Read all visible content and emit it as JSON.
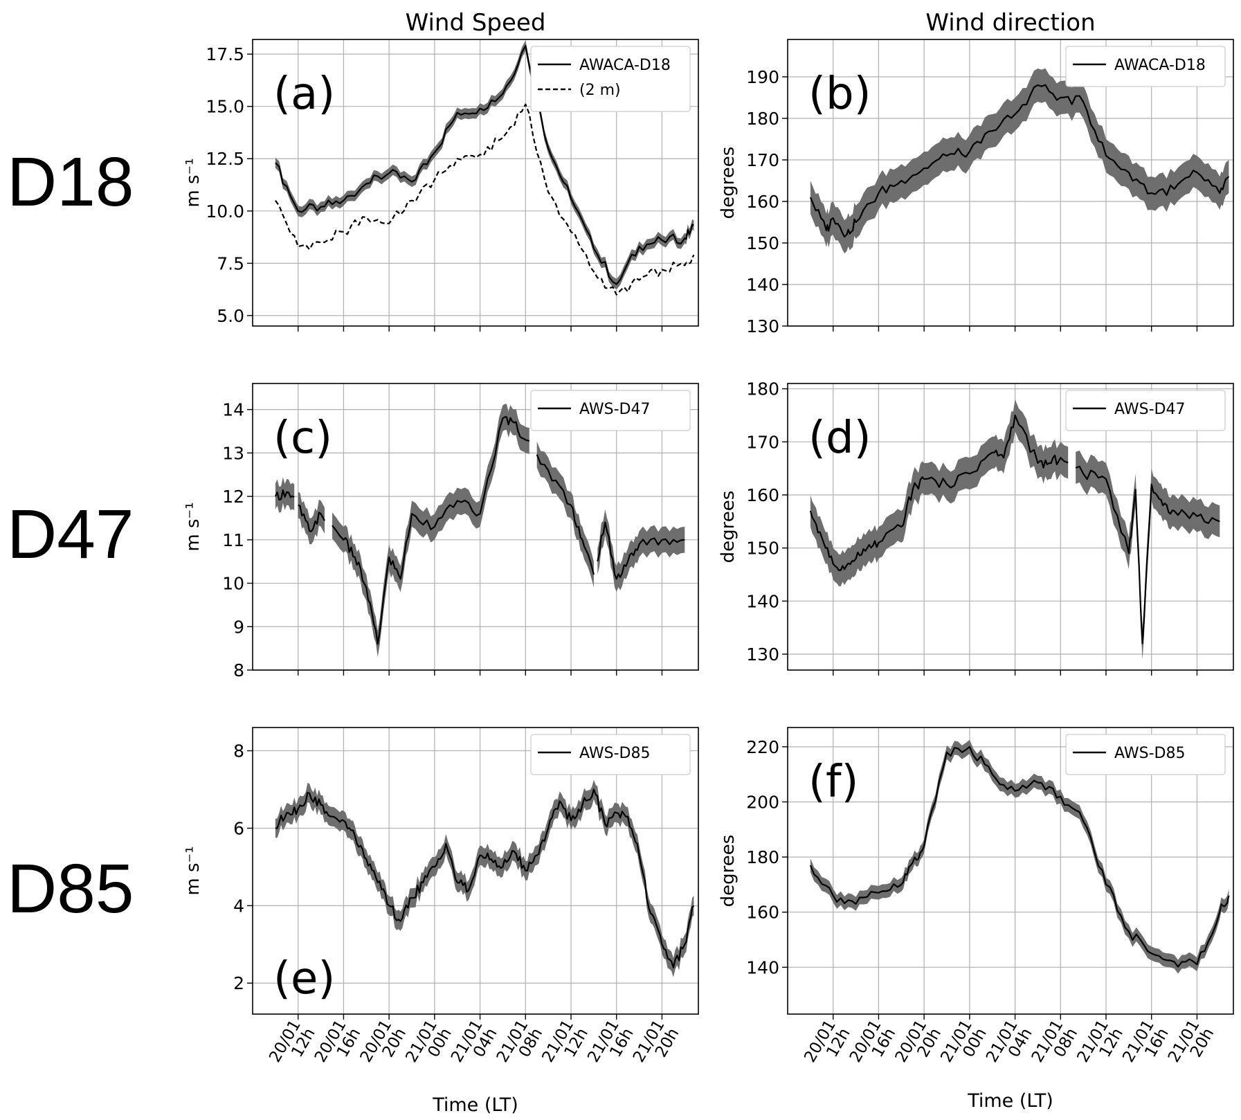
{
  "figure": {
    "column_titles": [
      "Wind Speed",
      "Wind direction"
    ],
    "row_labels": [
      "D18",
      "D47",
      "D85"
    ],
    "xlabel": "Time (LT)",
    "x_ticks": [
      {
        "date": "20/01",
        "hour": "12h"
      },
      {
        "date": "20/01",
        "hour": "16h"
      },
      {
        "date": "20/01",
        "hour": "20h"
      },
      {
        "date": "21/01",
        "hour": "00h"
      },
      {
        "date": "21/01",
        "hour": "04h"
      },
      {
        "date": "21/01",
        "hour": "08h"
      },
      {
        "date": "21/01",
        "hour": "12h"
      },
      {
        "date": "21/01",
        "hour": "16h"
      },
      {
        "date": "21/01",
        "hour": "20h"
      }
    ],
    "colors": {
      "line": "#000000",
      "band": "#6e6e6e",
      "grid": "#b0b0b0"
    }
  },
  "chart_data": [
    {
      "type": "line",
      "panel": "(a)",
      "ylabel": "m s⁻¹",
      "ylim": [
        4.5,
        18.2
      ],
      "yticks": [
        5.0,
        7.5,
        10.0,
        12.5,
        15.0,
        17.5
      ],
      "ytick_decimals": 1,
      "xlim": [
        6,
        25.6
      ],
      "grid": true,
      "legend_position": "upper-right",
      "label_position": "upper-left",
      "x": [
        7,
        8,
        9,
        10,
        11,
        12,
        13,
        14,
        15,
        16,
        17,
        18,
        19,
        20,
        21,
        22,
        23,
        24,
        25,
        25.4
      ],
      "series": [
        {
          "name": "AWACA-D18",
          "style": "solid",
          "band": 0.25,
          "values": [
            12.3,
            10.0,
            10.2,
            10.5,
            11.3,
            11.8,
            11.4,
            12.8,
            14.7,
            14.9,
            15.6,
            17.9,
            13.0,
            10.6,
            8.2,
            6.5,
            8.3,
            8.6,
            8.7,
            9.3
          ]
        },
        {
          "name": "(2 m)",
          "style": "dashed",
          "band": 0,
          "values": [
            10.5,
            8.3,
            8.5,
            9.0,
            9.7,
            9.4,
            10.5,
            11.5,
            12.5,
            12.7,
            13.5,
            15.1,
            10.9,
            9.0,
            7.1,
            6.0,
            6.7,
            7.2,
            7.4,
            7.9
          ]
        }
      ]
    },
    {
      "type": "line",
      "panel": "(b)",
      "ylabel": "degrees",
      "ylim": [
        130,
        199
      ],
      "yticks": [
        130,
        140,
        150,
        160,
        170,
        180,
        190
      ],
      "ytick_decimals": 0,
      "xlim": [
        6,
        25.6
      ],
      "grid": true,
      "legend_position": "upper-right",
      "label_position": "upper-left",
      "x": [
        7,
        7.7,
        8,
        8.6,
        9,
        10,
        11,
        12,
        13,
        14,
        15,
        16,
        17,
        18,
        19,
        20,
        21,
        22,
        23,
        24,
        25,
        25.4
      ],
      "series": [
        {
          "name": "AWACA-D18",
          "style": "solid",
          "band": 4,
          "values": [
            161,
            153,
            156,
            152,
            155,
            162,
            165,
            168,
            171,
            172,
            177,
            181,
            188,
            185,
            184,
            171,
            167,
            162,
            163,
            167,
            162,
            166
          ]
        }
      ]
    },
    {
      "type": "line",
      "panel": "(c)",
      "ylabel": "m s⁻¹",
      "ylim": [
        8,
        14.6
      ],
      "yticks": [
        8,
        9,
        10,
        11,
        12,
        13,
        14
      ],
      "ytick_decimals": 0,
      "xlim": [
        6,
        25.6
      ],
      "grid": true,
      "legend_position": "upper-right",
      "label_position": "upper-left",
      "x": [
        7,
        7.5,
        8,
        8.5,
        9,
        10,
        10.5,
        11,
        11.5,
        12,
        12.5,
        13,
        14,
        15,
        16,
        17,
        17.5,
        18,
        19,
        20,
        20.5,
        21,
        21.5,
        22,
        22.5,
        23,
        24,
        25
      ],
      "series": [
        {
          "name": "AWS-D47",
          "style": "solid",
          "band": 0.3,
          "values": [
            12.0,
            12.1,
            11.8,
            11.2,
            11.6,
            11.0,
            10.6,
            9.9,
            8.6,
            10.6,
            10.1,
            11.6,
            11.3,
            11.9,
            11.6,
            13.8,
            13.7,
            13.3,
            12.6,
            11.8,
            11.0,
            10.2,
            11.4,
            10.1,
            10.5,
            10.9,
            11.0,
            11.0
          ],
          "gaps_after": [
            7.9,
            9.3,
            18.3,
            21.1
          ]
        }
      ]
    },
    {
      "type": "line",
      "panel": "(d)",
      "ylabel": "degrees",
      "ylim": [
        127,
        181
      ],
      "yticks": [
        130,
        140,
        150,
        160,
        170,
        180
      ],
      "ytick_decimals": 0,
      "xlim": [
        6,
        25.6
      ],
      "grid": true,
      "legend_position": "upper-right",
      "label_position": "upper-left",
      "x": [
        7,
        7.5,
        8,
        8.5,
        9,
        9.5,
        10,
        11,
        11.5,
        12,
        13,
        14,
        15,
        15.5,
        16,
        17,
        17.5,
        18,
        19,
        20,
        21,
        21.3,
        21.6,
        22,
        22.5,
        23,
        24,
        25
      ],
      "series": [
        {
          "name": "AWS-D47",
          "style": "solid",
          "band": 3,
          "values": [
            157,
            152,
            147,
            146,
            148,
            150,
            151,
            154,
            161,
            163,
            162,
            164,
            168,
            167,
            175,
            166,
            166,
            167,
            164,
            163,
            149,
            161,
            132,
            162,
            158,
            157,
            156,
            155
          ],
          "gaps_after": [
            18.5
          ]
        }
      ]
    },
    {
      "type": "line",
      "panel": "(e)",
      "ylabel": "m s⁻¹",
      "ylim": [
        1.2,
        8.6
      ],
      "yticks": [
        2,
        4,
        6,
        8
      ],
      "ytick_decimals": 0,
      "xlim": [
        6,
        25.6
      ],
      "grid": true,
      "legend_position": "upper-right",
      "label_position": "lower-left",
      "x": [
        7,
        7.5,
        8,
        8.5,
        9,
        9.5,
        10,
        10.5,
        11,
        11.5,
        12,
        12.5,
        13,
        13.5,
        14,
        14.5,
        15,
        15.5,
        16,
        16.5,
        17,
        17.5,
        18,
        18.5,
        19,
        19.5,
        20,
        20.5,
        21,
        21.5,
        22,
        22.5,
        23,
        23.5,
        24,
        24.5,
        25,
        25.4
      ],
      "series": [
        {
          "name": "AWS-D85",
          "style": "solid",
          "band": 0.25,
          "values": [
            6.0,
            6.4,
            6.5,
            6.9,
            6.6,
            6.3,
            6.2,
            5.8,
            5.2,
            4.6,
            4.0,
            3.6,
            4.2,
            4.6,
            5.0,
            5.6,
            4.6,
            4.4,
            5.3,
            5.2,
            5.0,
            5.4,
            4.9,
            5.3,
            6.0,
            6.7,
            6.2,
            6.6,
            7.0,
            6.1,
            6.4,
            6.3,
            5.3,
            3.8,
            3.0,
            2.4,
            3.0,
            4.0
          ]
        }
      ]
    },
    {
      "type": "line",
      "panel": "(f)",
      "ylabel": "degrees",
      "ylim": [
        123,
        227
      ],
      "yticks": [
        140,
        160,
        180,
        200,
        220
      ],
      "ytick_decimals": 0,
      "xlim": [
        6,
        25.6
      ],
      "grid": true,
      "legend_position": "upper-right",
      "label_position": "upper-left",
      "x": [
        7,
        8,
        9,
        10,
        11,
        11.5,
        12,
        13,
        14,
        15,
        16,
        17,
        18,
        19,
        20,
        21,
        22,
        23,
        24,
        25,
        25.4
      ],
      "series": [
        {
          "name": "AWS-D85",
          "style": "solid",
          "band": 2.5,
          "values": [
            177,
            166,
            163,
            167,
            170,
            178,
            184,
            218,
            220,
            210,
            204,
            207,
            202,
            193,
            170,
            153,
            145,
            142,
            141,
            160,
            166
          ]
        }
      ]
    }
  ]
}
